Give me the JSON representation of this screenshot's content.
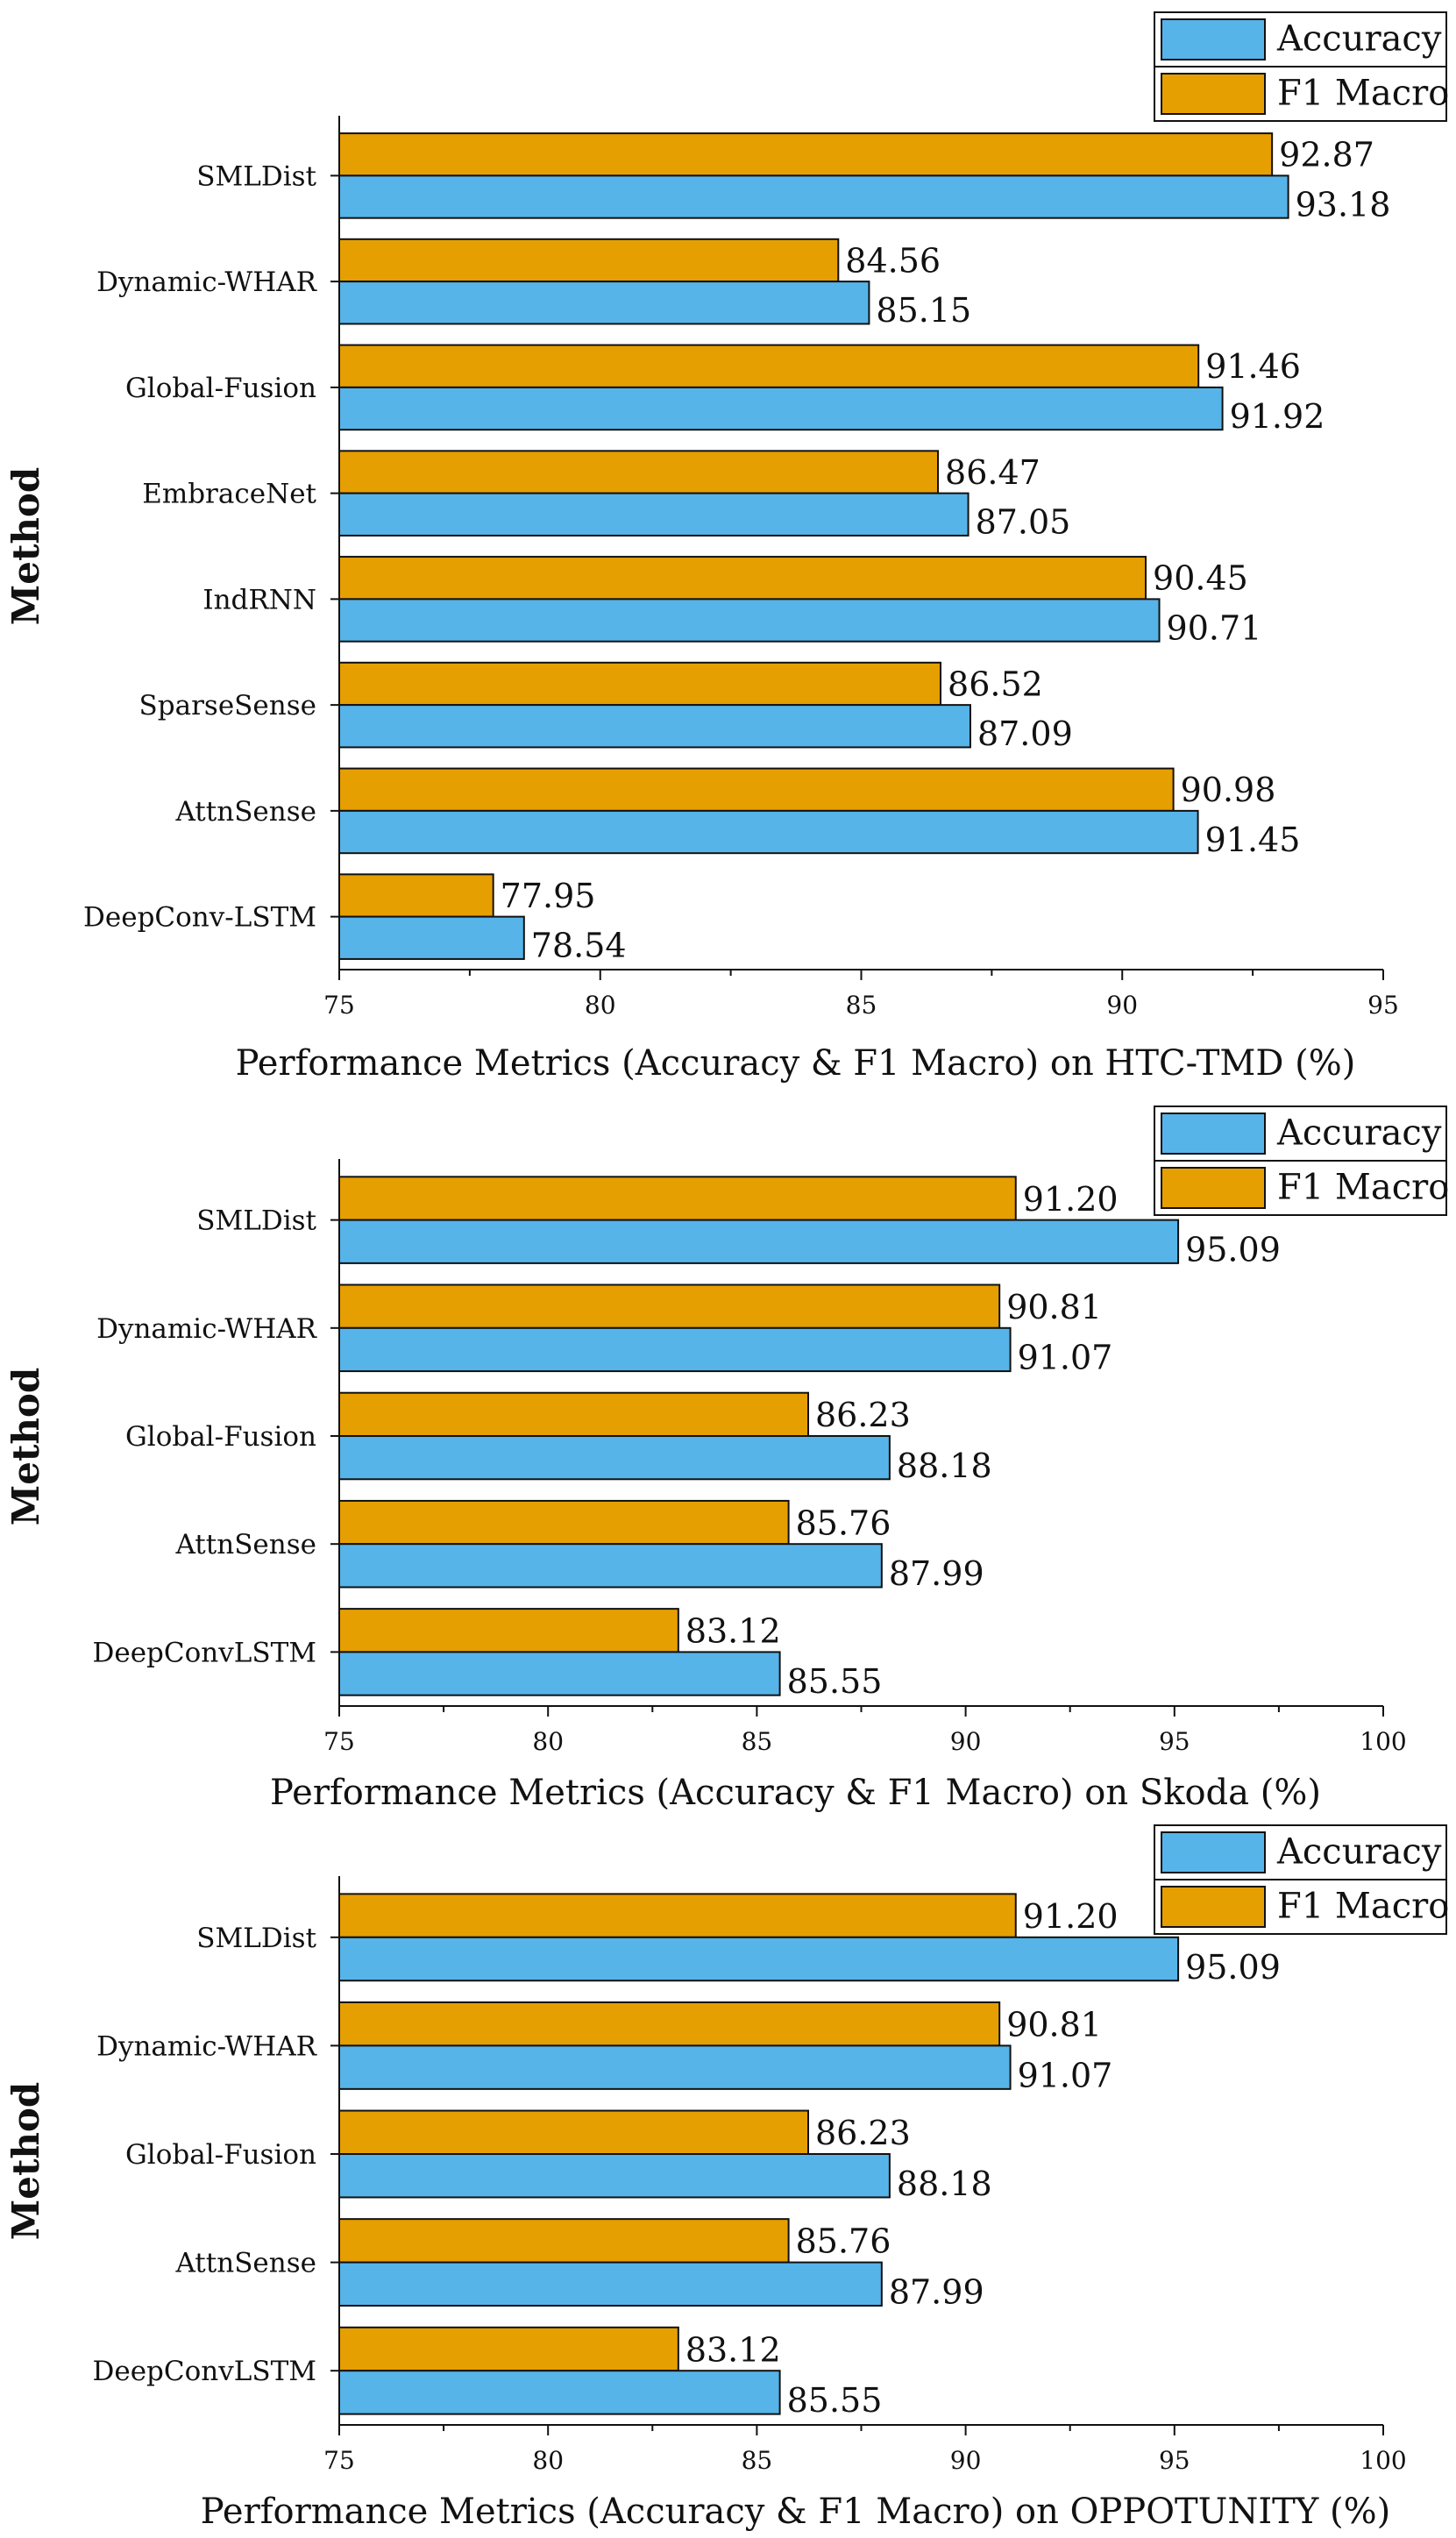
{
  "chart_data": [
    {
      "type": "bar",
      "orientation": "horizontal",
      "categories": [
        "SMLDist",
        "Dynamic-WHAR",
        "Global-Fusion",
        "EmbraceNet",
        "IndRNN",
        "SparseSense",
        "AttnSense",
        "DeepConv-LSTM"
      ],
      "series": [
        {
          "name": "Accuracy",
          "color": "#56b4e9",
          "values": [
            93.18,
            85.15,
            91.92,
            87.05,
            90.71,
            87.09,
            91.45,
            78.54
          ]
        },
        {
          "name": "F1 Macro",
          "color": "#e69f00",
          "values": [
            92.87,
            84.56,
            91.46,
            86.47,
            90.45,
            86.52,
            90.98,
            77.95
          ]
        }
      ],
      "value_labels": {
        "Accuracy": [
          "93.18",
          "85.15",
          "91.92",
          "87.05",
          "90.71",
          "87.09",
          "91.45",
          "78.54"
        ],
        "F1 Macro": [
          "92.87",
          "84.56",
          "91.46",
          "86.47",
          "90.45",
          "86.52",
          "90.98",
          "77.95"
        ]
      },
      "xlabel": "Performance Metrics (Accuracy &  F1 Macro) on HTC-TMD (%)",
      "ylabel": "Method",
      "xlim": [
        75,
        95
      ],
      "xticks": [
        75,
        80,
        85,
        90,
        95
      ],
      "xtick_labels": [
        "75",
        "80",
        "85",
        "90",
        "95"
      ],
      "legend": "top-right",
      "grid": false
    },
    {
      "type": "bar",
      "orientation": "horizontal",
      "categories": [
        "SMLDist",
        "Dynamic-WHAR",
        "Global-Fusion",
        "AttnSense",
        "DeepConvLSTM"
      ],
      "series": [
        {
          "name": "Accuracy",
          "color": "#56b4e9",
          "values": [
            95.09,
            91.07,
            88.18,
            87.99,
            85.55
          ]
        },
        {
          "name": "F1 Macro",
          "color": "#e69f00",
          "values": [
            91.2,
            90.81,
            86.23,
            85.76,
            83.12
          ]
        }
      ],
      "value_labels": {
        "Accuracy": [
          "95.09",
          "91.07",
          "88.18",
          "87.99",
          "85.55"
        ],
        "F1 Macro": [
          "91.20",
          "90.81",
          "86.23",
          "85.76",
          "83.12"
        ]
      },
      "xlabel": "Performance Metrics (Accuracy &  F1 Macro) on Skoda (%)",
      "ylabel": "Method",
      "xlim": [
        75,
        100
      ],
      "xticks": [
        75,
        80,
        85,
        90,
        95,
        100
      ],
      "xtick_labels": [
        "75",
        "80",
        "85",
        "90",
        "95",
        "100"
      ],
      "legend": "top-right",
      "grid": false
    },
    {
      "type": "bar",
      "orientation": "horizontal",
      "categories": [
        "SMLDist",
        "Dynamic-WHAR",
        "Global-Fusion",
        "AttnSense",
        "DeepConvLSTM"
      ],
      "series": [
        {
          "name": "Accuracy",
          "color": "#56b4e9",
          "values": [
            95.09,
            91.07,
            88.18,
            87.99,
            85.55
          ]
        },
        {
          "name": "F1 Macro",
          "color": "#e69f00",
          "values": [
            91.2,
            90.81,
            86.23,
            85.76,
            83.12
          ]
        }
      ],
      "value_labels": {
        "Accuracy": [
          "95.09",
          "91.07",
          "88.18",
          "87.99",
          "85.55"
        ],
        "F1 Macro": [
          "91.20",
          "90.81",
          "86.23",
          "85.76",
          "83.12"
        ]
      },
      "xlabel": "Performance Metrics (Accuracy &  F1 Macro) on OPPOTUNITY (%)",
      "ylabel": "Method",
      "xlim": [
        75,
        100
      ],
      "xticks": [
        75,
        80,
        85,
        90,
        95,
        100
      ],
      "xtick_labels": [
        "75",
        "80",
        "85",
        "90",
        "95",
        "100"
      ],
      "legend": "top-right",
      "grid": false
    }
  ]
}
